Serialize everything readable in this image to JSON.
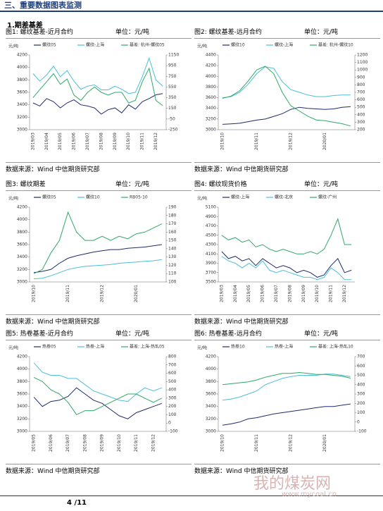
{
  "header": {
    "title": "三、重要数据图表监测"
  },
  "section": {
    "title": "1.期差基差"
  },
  "panels": [
    {
      "title": "图1: 螺纹基差-近月合约",
      "unit": "单位：元/吨",
      "source": "数据来源：Wind  中信期货研究部"
    },
    {
      "title": "图2: 螺纹基差-远月合约",
      "unit": "单位：元/吨",
      "source": "数据来源：Wind  中信期货研究部"
    },
    {
      "title": "图3: 螺纹期差",
      "unit": "单位：元/吨",
      "source": "数据来源：Wind  中信期货研究部"
    },
    {
      "title": "图4: 螺纹现货价格",
      "unit": "单位：元/吨",
      "source": "数据来源：Wind  中信期货研究部"
    },
    {
      "title": "图5: 热卷基差-近月合约",
      "unit": "单位：元/吨",
      "source": "数据来源：Wind  中信期货研究部"
    },
    {
      "title": "图6: 热卷基差-远月合约",
      "unit": "单位：元/吨",
      "source": "数据来源：Wind  中信期货研究部"
    }
  ],
  "chart_data": [
    {
      "type": "line",
      "y_label": "元/吨",
      "ylim": [
        3000,
        4200
      ],
      "yticks": [
        3000,
        3200,
        3400,
        3600,
        3800,
        4000,
        4200
      ],
      "y2lim": [
        -250,
        1150
      ],
      "y2ticks": [
        -250,
        -50,
        150,
        350,
        550,
        750,
        950,
        1150
      ],
      "categories": [
        "2019/03",
        null,
        "2019/04",
        null,
        "2019/05",
        null,
        "2019/06",
        null,
        "2019/07",
        null,
        "2019/08",
        null,
        "2019/09",
        null,
        "2019/10",
        null,
        "2019/11",
        null,
        "2019/12",
        null
      ],
      "series": [
        {
          "name": "螺纹05",
          "color": "#1f2a6b",
          "values": [
            3430,
            3380,
            3500,
            3450,
            3350,
            3430,
            3480,
            3400,
            3380,
            3350,
            3250,
            3320,
            3350,
            3270,
            3400,
            3330,
            3450,
            3500,
            3560,
            3580
          ]
        },
        {
          "name": "螺纹-上海",
          "color": "#4bbfd9",
          "values": [
            3900,
            3780,
            3880,
            4020,
            3850,
            3950,
            3780,
            3650,
            3700,
            3720,
            3640,
            3640,
            3700,
            3650,
            3580,
            3600,
            3850,
            4150,
            3800,
            3700
          ]
        },
        {
          "name": "基差: 杭州-螺纹05",
          "color": "#2fa866",
          "axis": "y2",
          "values": [
            350,
            500,
            650,
            800,
            600,
            700,
            400,
            300,
            450,
            550,
            450,
            400,
            450,
            450,
            250,
            300,
            650,
            900,
            300,
            200
          ]
        }
      ]
    },
    {
      "type": "line",
      "y_label": "元/吨",
      "ylim": [
        3000,
        4400
      ],
      "yticks": [
        3000,
        3200,
        3400,
        3600,
        3800,
        4000,
        4200,
        4400
      ],
      "y2lim": [
        200,
        1200
      ],
      "y2ticks": [
        200,
        300,
        400,
        500,
        600,
        700,
        800,
        900,
        1000,
        1100,
        1200
      ],
      "categories": [
        "2019/10",
        null,
        null,
        null,
        "2019/11",
        null,
        null,
        null,
        "2019/12",
        null,
        null,
        null,
        "2020/01",
        null,
        null,
        null
      ],
      "series": [
        {
          "name": "螺纹10",
          "color": "#1f2a6b",
          "values": [
            3100,
            3110,
            3120,
            3150,
            3180,
            3200,
            3250,
            3300,
            3380,
            3420,
            3400,
            3390,
            3380,
            3390,
            3420,
            3430
          ]
        },
        {
          "name": "螺纹-上海",
          "color": "#4bbfd9",
          "values": [
            3600,
            3620,
            3700,
            3850,
            4050,
            4180,
            4150,
            3900,
            3750,
            3700,
            3650,
            3620,
            3620,
            3640,
            3650,
            3650
          ]
        },
        {
          "name": "基差: 杭州-螺纹10",
          "color": "#2fa866",
          "axis": "y2",
          "values": [
            620,
            650,
            720,
            850,
            1000,
            1050,
            950,
            700,
            520,
            450,
            380,
            330,
            320,
            300,
            280,
            250
          ]
        }
      ]
    },
    {
      "type": "line",
      "y_label": "元/吨",
      "ylim": [
        3000,
        4200
      ],
      "yticks": [
        3000,
        3200,
        3400,
        3600,
        3800,
        4000,
        4200
      ],
      "y2lim": [
        100,
        190
      ],
      "y2ticks": [
        100,
        110,
        120,
        130,
        140,
        150,
        160,
        170,
        180,
        190
      ],
      "categories": [
        "2019/10",
        null,
        null,
        null,
        "2019/11",
        null,
        null,
        null,
        "2019/12",
        null,
        null,
        null,
        "2020/01",
        null,
        null,
        null
      ],
      "series": [
        {
          "name": "螺纹05",
          "color": "#1f2a6b",
          "values": [
            3150,
            3170,
            3200,
            3300,
            3380,
            3420,
            3450,
            3480,
            3500,
            3520,
            3520,
            3540,
            3550,
            3560,
            3580,
            3600
          ]
        },
        {
          "name": "螺纹10",
          "color": "#4bbfd9",
          "values": [
            3050,
            3060,
            3100,
            3150,
            3200,
            3230,
            3250,
            3260,
            3270,
            3280,
            3300,
            3310,
            3320,
            3330,
            3340,
            3360
          ]
        },
        {
          "name": "RB05-10",
          "color": "#2fa866",
          "axis": "y2",
          "values": [
            110,
            115,
            135,
            150,
            184,
            160,
            150,
            150,
            155,
            150,
            155,
            152,
            158,
            160,
            165,
            170
          ]
        }
      ]
    },
    {
      "type": "line",
      "y_label": "元/吨",
      "ylim": [
        3500,
        5100
      ],
      "yticks": [
        3500,
        3700,
        3900,
        4100,
        4300,
        4500,
        4700,
        4900,
        5100
      ],
      "categories": [
        "2019/03",
        null,
        "2019/04",
        null,
        "2019/05",
        null,
        "2019/06",
        null,
        "2019/07",
        null,
        "2019/08",
        null,
        "2019/09",
        null,
        "2019/10",
        null,
        "2019/11",
        null,
        "2019/12",
        null
      ],
      "series": [
        {
          "name": "螺纹-上海",
          "color": "#1f2a6b",
          "values": [
            4150,
            4000,
            4050,
            3950,
            4000,
            3850,
            4000,
            3900,
            3800,
            3850,
            3800,
            3700,
            3750,
            3700,
            3600,
            3650,
            3850,
            4000,
            3700,
            3750
          ]
        },
        {
          "name": "螺纹-北京",
          "color": "#4bbfd9",
          "values": [
            4050,
            3950,
            3900,
            3800,
            3900,
            3800,
            3950,
            3750,
            3700,
            3750,
            3700,
            3650,
            3600,
            3600,
            3550,
            3600,
            3800,
            3700,
            3550,
            3550
          ]
        },
        {
          "name": "螺纹-广州",
          "color": "#2fa866",
          "values": [
            4500,
            4400,
            4450,
            4350,
            4400,
            4250,
            4300,
            4200,
            4150,
            4200,
            4150,
            4100,
            4100,
            4150,
            4100,
            4200,
            4500,
            4850,
            4300,
            4300
          ]
        }
      ]
    },
    {
      "type": "line",
      "y_label": "元/吨",
      "ylim": [
        3000,
        4200
      ],
      "yticks": [
        3000,
        3200,
        3400,
        3600,
        3800,
        4000,
        4200
      ],
      "y2lim": [
        -100,
        800
      ],
      "y2ticks": [
        -100,
        0,
        100,
        200,
        300,
        400,
        500,
        600,
        700,
        800
      ],
      "categories": [
        "2019/05",
        null,
        "2019/06",
        null,
        "2019/07",
        null,
        "2019/08",
        null,
        "2019/09",
        null,
        "2019/10",
        null,
        "2019/11",
        null,
        "2019/12",
        null
      ],
      "series": [
        {
          "name": "热卷05",
          "color": "#1f2a6b",
          "values": [
            3550,
            3400,
            3480,
            3500,
            3560,
            3700,
            3600,
            3500,
            3450,
            3350,
            3250,
            3200,
            3300,
            3350,
            3400,
            3450
          ]
        },
        {
          "name": "热卷-上海",
          "color": "#4bbfd9",
          "values": [
            4100,
            3950,
            3900,
            3900,
            3850,
            3850,
            3750,
            3650,
            3600,
            3550,
            3500,
            3480,
            3600,
            3700,
            3650,
            3700
          ]
        },
        {
          "name": "基差: 上海-热轧05",
          "color": "#2fa866",
          "axis": "y2",
          "values": [
            550,
            500,
            400,
            350,
            250,
            100,
            150,
            150,
            200,
            250,
            300,
            350,
            350,
            300,
            250,
            300
          ]
        }
      ]
    },
    {
      "type": "line",
      "y_label": "元/吨",
      "ylim": [
        3000,
        4200
      ],
      "yticks": [
        3000,
        3200,
        3400,
        3600,
        3800,
        4000,
        4200
      ],
      "y2lim": [
        -100,
        700
      ],
      "y2ticks": [
        -100,
        0,
        100,
        200,
        300,
        400,
        500,
        600,
        700
      ],
      "categories": [
        "2019/10",
        null,
        null,
        null,
        "2019/11",
        null,
        null,
        null,
        "2019/12",
        null,
        null,
        null,
        "2020/01",
        null,
        null,
        null
      ],
      "series": [
        {
          "name": "热卷10",
          "color": "#1f2a6b",
          "values": [
            3100,
            3120,
            3150,
            3200,
            3220,
            3250,
            3280,
            3300,
            3320,
            3340,
            3360,
            3380,
            3400,
            3400,
            3420,
            3440
          ]
        },
        {
          "name": "热卷-上海",
          "color": "#4bbfd9",
          "values": [
            3500,
            3520,
            3550,
            3600,
            3650,
            3750,
            3800,
            3850,
            3880,
            3900,
            3900,
            3900,
            3920,
            3920,
            3900,
            3880
          ]
        },
        {
          "name": "基差: 上海-热轧10",
          "color": "#2fa866",
          "axis": "y2",
          "values": [
            400,
            410,
            420,
            430,
            450,
            480,
            500,
            520,
            520,
            530,
            520,
            510,
            510,
            500,
            490,
            470
          ]
        }
      ]
    }
  ],
  "footer": {
    "page": "4 /11"
  },
  "watermark": {
    "name": "我的煤炭网",
    "url": "www.mycoal.cn"
  }
}
